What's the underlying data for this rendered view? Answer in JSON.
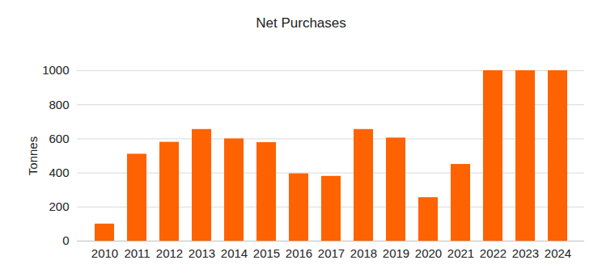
{
  "chart_data": {
    "type": "bar",
    "title": "Net Purchases",
    "y_label": "Tonnes",
    "categories": [
      "2010",
      "2011",
      "2012",
      "2013",
      "2014",
      "2015",
      "2016",
      "2017",
      "2018",
      "2019",
      "2020",
      "2021",
      "2022",
      "2023",
      "2024"
    ],
    "values": [
      100,
      510,
      580,
      655,
      600,
      578,
      395,
      380,
      655,
      605,
      255,
      450,
      1000,
      1000,
      1000
    ],
    "color": "#ff6200",
    "ylim": [
      0,
      1000
    ],
    "yticks": [
      0,
      200,
      400,
      600,
      800,
      1000
    ],
    "grid": true
  }
}
